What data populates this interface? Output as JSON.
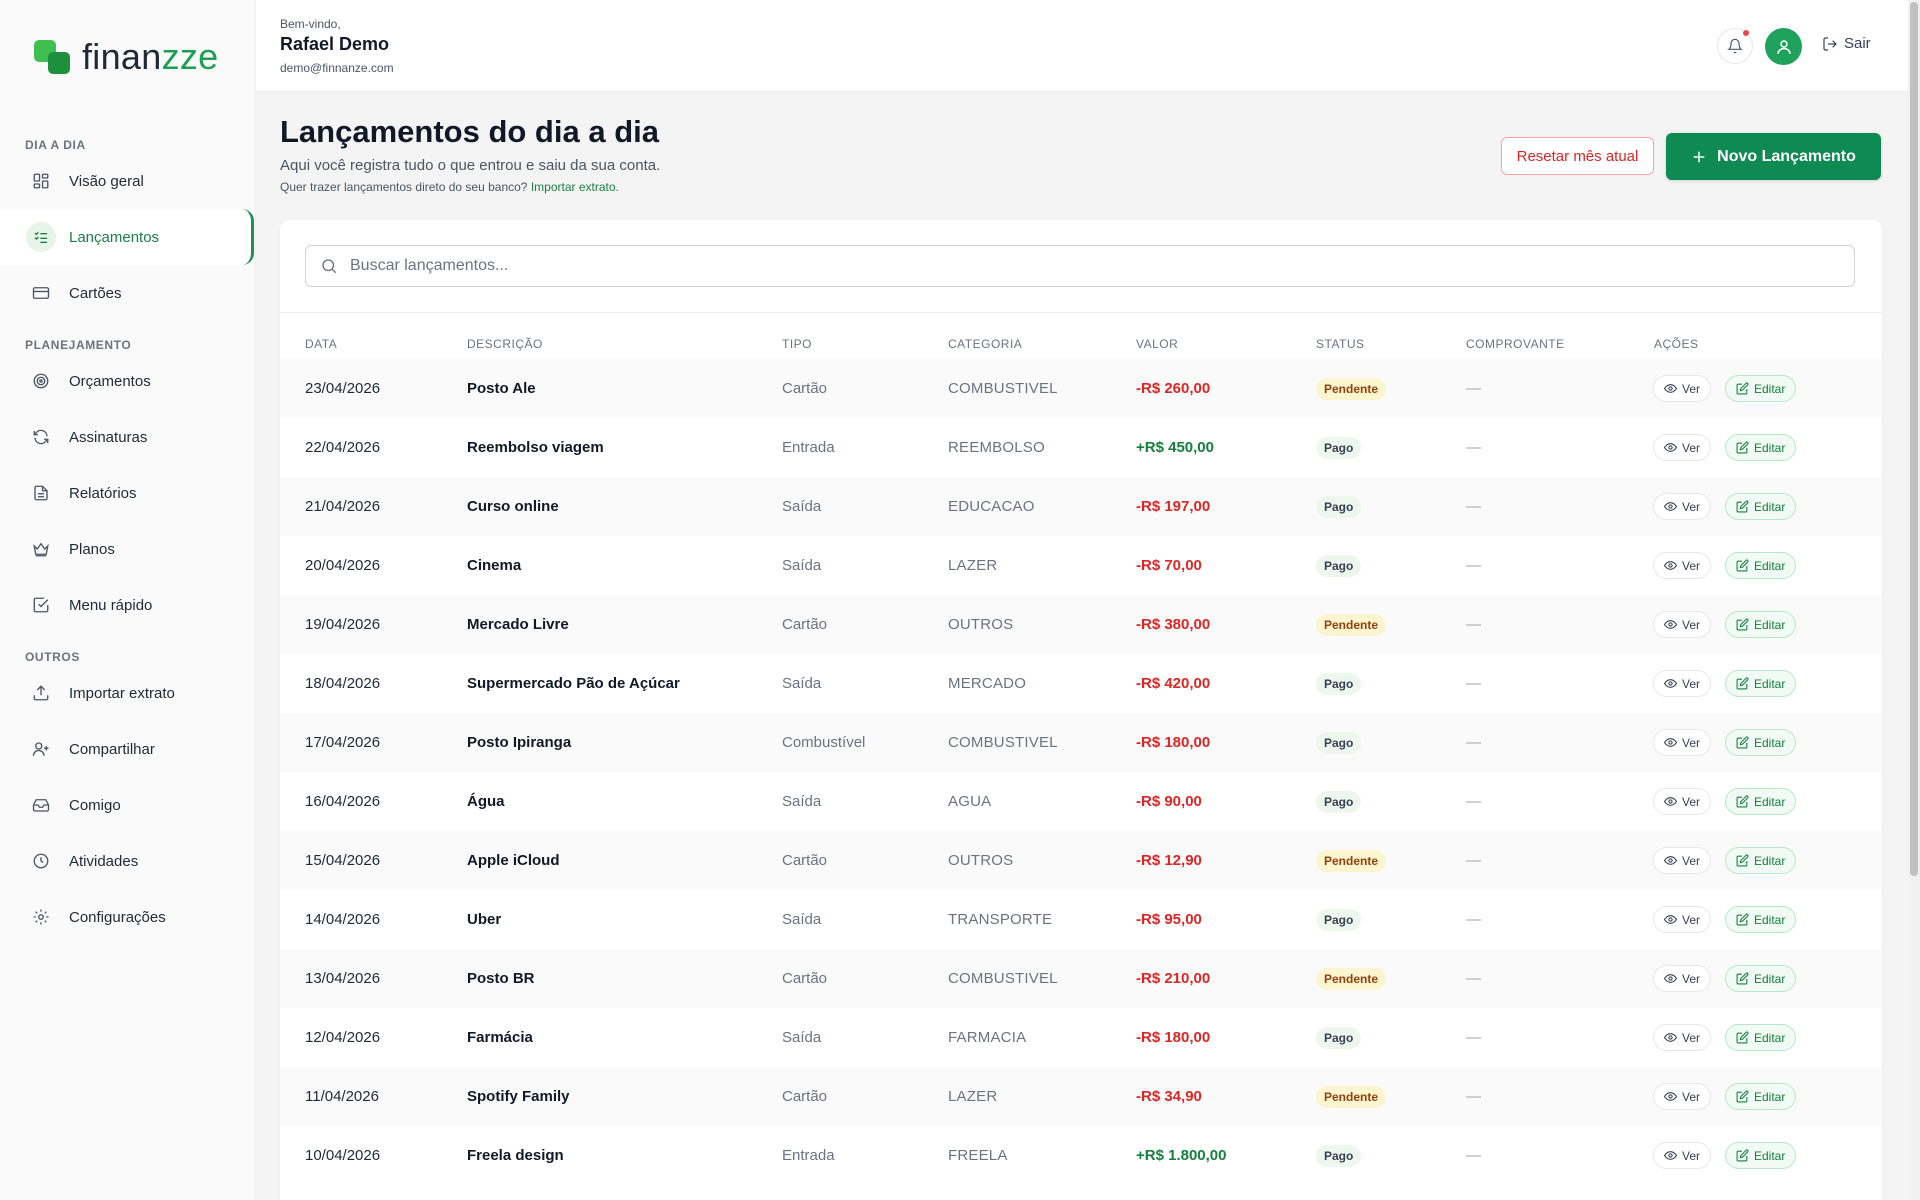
{
  "brand": {
    "name_prefix": "finan",
    "name_suffix": "zze"
  },
  "sidebar": {
    "sections": [
      {
        "title": "DIA A DIA"
      },
      {
        "title": "PLANEJAMENTO"
      },
      {
        "title": "OUTROS"
      }
    ],
    "items": [
      {
        "label": "Visão geral",
        "icon": "dashboard-icon"
      },
      {
        "label": "Lançamentos",
        "icon": "list-check-icon",
        "active": true
      },
      {
        "label": "Cartões",
        "icon": "credit-card-icon"
      },
      {
        "label": "Orçamentos",
        "icon": "target-icon"
      },
      {
        "label": "Assinaturas",
        "icon": "refresh-icon"
      },
      {
        "label": "Relatórios",
        "icon": "document-icon"
      },
      {
        "label": "Planos",
        "icon": "crown-icon"
      },
      {
        "label": "Menu rápido",
        "icon": "checkbox-icon"
      },
      {
        "label": "Importar extrato",
        "icon": "upload-icon"
      },
      {
        "label": "Compartilhar",
        "icon": "user-plus-icon"
      },
      {
        "label": "Comigo",
        "icon": "inbox-icon"
      },
      {
        "label": "Atividades",
        "icon": "clock-icon"
      },
      {
        "label": "Configurações",
        "icon": "gear-icon"
      }
    ]
  },
  "header": {
    "welcome": "Bem-vindo,",
    "user_name": "Rafael Demo",
    "user_email": "demo@finnanze.com",
    "logout_label": "Sair"
  },
  "page": {
    "title": "Lançamentos do dia a dia",
    "subtitle": "Aqui você registra tudo o que entrou e saiu da sua conta.",
    "hint": "Quer trazer lançamentos direto do seu banco?",
    "hint_link": "Importar extrato.",
    "reset_button": "Resetar mês atual",
    "new_button": "Novo Lançamento"
  },
  "search": {
    "placeholder": "Buscar lançamentos..."
  },
  "table": {
    "columns": [
      "DATA",
      "DESCRIÇÃO",
      "TIPO",
      "CATEGORIA",
      "VALOR",
      "STATUS",
      "COMPROVANTE",
      "AÇÕES"
    ],
    "view_label": "Ver",
    "edit_label": "Editar",
    "rows": [
      {
        "date": "23/04/2026",
        "desc": "Posto Ale",
        "tipo": "Cartão",
        "cat": "COMBUSTIVEL",
        "valor": "-R$ 260,00",
        "sign": "neg",
        "status": "Pendente",
        "comp": "—"
      },
      {
        "date": "22/04/2026",
        "desc": "Reembolso viagem",
        "tipo": "Entrada",
        "cat": "REEMBOLSO",
        "valor": "+R$ 450,00",
        "sign": "pos",
        "status": "Pago",
        "comp": "—"
      },
      {
        "date": "21/04/2026",
        "desc": "Curso online",
        "tipo": "Saída",
        "cat": "EDUCACAO",
        "valor": "-R$ 197,00",
        "sign": "neg",
        "status": "Pago",
        "comp": "—"
      },
      {
        "date": "20/04/2026",
        "desc": "Cinema",
        "tipo": "Saída",
        "cat": "LAZER",
        "valor": "-R$ 70,00",
        "sign": "neg",
        "status": "Pago",
        "comp": "—"
      },
      {
        "date": "19/04/2026",
        "desc": "Mercado Livre",
        "tipo": "Cartão",
        "cat": "OUTROS",
        "valor": "-R$ 380,00",
        "sign": "neg",
        "status": "Pendente",
        "comp": "—"
      },
      {
        "date": "18/04/2026",
        "desc": "Supermercado Pão de Açúcar",
        "tipo": "Saída",
        "cat": "MERCADO",
        "valor": "-R$ 420,00",
        "sign": "neg",
        "status": "Pago",
        "comp": "—"
      },
      {
        "date": "17/04/2026",
        "desc": "Posto Ipiranga",
        "tipo": "Combustível",
        "cat": "COMBUSTIVEL",
        "valor": "-R$ 180,00",
        "sign": "neg",
        "status": "Pago",
        "comp": "—"
      },
      {
        "date": "16/04/2026",
        "desc": "Água",
        "tipo": "Saída",
        "cat": "AGUA",
        "valor": "-R$ 90,00",
        "sign": "neg",
        "status": "Pago",
        "comp": "—"
      },
      {
        "date": "15/04/2026",
        "desc": "Apple iCloud",
        "tipo": "Cartão",
        "cat": "OUTROS",
        "valor": "-R$ 12,90",
        "sign": "neg",
        "status": "Pendente",
        "comp": "—"
      },
      {
        "date": "14/04/2026",
        "desc": "Uber",
        "tipo": "Saída",
        "cat": "TRANSPORTE",
        "valor": "-R$ 95,00",
        "sign": "neg",
        "status": "Pago",
        "comp": "—"
      },
      {
        "date": "13/04/2026",
        "desc": "Posto BR",
        "tipo": "Cartão",
        "cat": "COMBUSTIVEL",
        "valor": "-R$ 210,00",
        "sign": "neg",
        "status": "Pendente",
        "comp": "—"
      },
      {
        "date": "12/04/2026",
        "desc": "Farmácia",
        "tipo": "Saída",
        "cat": "FARMACIA",
        "valor": "-R$ 180,00",
        "sign": "neg",
        "status": "Pago",
        "comp": "—"
      },
      {
        "date": "11/04/2026",
        "desc": "Spotify Family",
        "tipo": "Cartão",
        "cat": "LAZER",
        "valor": "-R$ 34,90",
        "sign": "neg",
        "status": "Pendente",
        "comp": "—"
      },
      {
        "date": "10/04/2026",
        "desc": "Freela design",
        "tipo": "Entrada",
        "cat": "FREELA",
        "valor": "+R$ 1.800,00",
        "sign": "pos",
        "status": "Pago",
        "comp": "—"
      }
    ]
  },
  "colors": {
    "accent": "#0f8a52",
    "negative": "#dc2626",
    "positive": "#15803d",
    "pending_bg": "#fdf5cf",
    "paid_bg": "#eef7ee"
  }
}
